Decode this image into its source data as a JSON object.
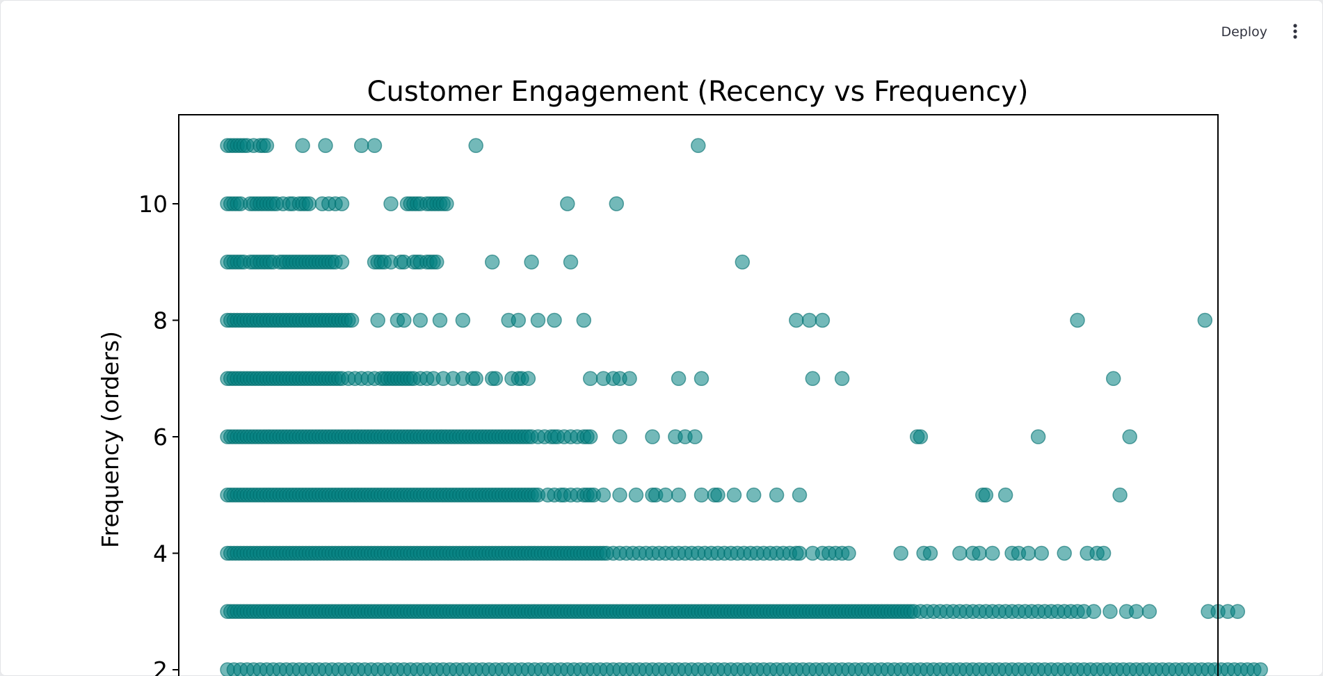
{
  "toolbar": {
    "deploy_label": "Deploy",
    "menu_icon": "kebab-vertical-icon"
  },
  "colors": {
    "point": "#008080",
    "point_edge": "#006d6d",
    "axis": "#000000"
  },
  "chart_data": {
    "type": "scatter",
    "title": "Customer Engagement (Recency vs Frequency)",
    "xlabel": "",
    "ylabel": "Frequency (orders)",
    "ylim": [
      1.9,
      11.5
    ],
    "yticks": [
      2,
      4,
      6,
      8,
      10
    ],
    "grid": false,
    "point_alpha": 0.55,
    "x_note_units": "relative",
    "series": [
      {
        "y": 11,
        "x": [
          0,
          2,
          4,
          6,
          8,
          10,
          12,
          16,
          20,
          22,
          24,
          46,
          60,
          82,
          90,
          152,
          288
        ]
      },
      {
        "y": 10,
        "x": [
          0,
          2,
          4,
          6,
          8,
          14,
          16,
          18,
          20,
          22,
          24,
          26,
          28,
          30,
          34,
          38,
          40,
          44,
          46,
          48,
          50,
          58,
          62,
          66,
          70,
          100,
          110,
          112,
          114,
          116,
          118,
          122,
          124,
          126,
          128,
          130,
          132,
          134,
          208,
          238
        ]
      },
      {
        "y": 9,
        "x": [
          0,
          2,
          4,
          6,
          8,
          10,
          14,
          16,
          18,
          20,
          22,
          24,
          26,
          28,
          32,
          34,
          36,
          38,
          40,
          42,
          44,
          46,
          48,
          50,
          52,
          54,
          56,
          58,
          60,
          62,
          64,
          66,
          70,
          90,
          92,
          94,
          96,
          100,
          106,
          108,
          114,
          116,
          118,
          122,
          124,
          126,
          128,
          162,
          186,
          210,
          315
        ]
      },
      {
        "y": 8,
        "x": [
          0,
          2,
          4,
          6,
          8,
          10,
          12,
          14,
          16,
          18,
          20,
          22,
          24,
          26,
          28,
          30,
          32,
          34,
          36,
          38,
          40,
          42,
          44,
          46,
          48,
          50,
          52,
          54,
          56,
          58,
          60,
          62,
          64,
          66,
          68,
          70,
          72,
          74,
          76,
          92,
          104,
          108,
          118,
          130,
          144,
          172,
          178,
          190,
          200,
          218,
          348,
          356,
          364,
          520,
          598
        ]
      },
      {
        "y": 7,
        "x": [
          0,
          2,
          4,
          6,
          8,
          10,
          12,
          14,
          16,
          18,
          20,
          22,
          24,
          26,
          28,
          30,
          32,
          34,
          36,
          38,
          40,
          42,
          44,
          46,
          48,
          50,
          52,
          54,
          56,
          58,
          60,
          62,
          64,
          66,
          68,
          70,
          74,
          78,
          82,
          86,
          90,
          94,
          96,
          98,
          100,
          102,
          104,
          106,
          108,
          110,
          112,
          114,
          118,
          122,
          126,
          132,
          138,
          144,
          150,
          152,
          162,
          164,
          174,
          178,
          180,
          184,
          222,
          230,
          236,
          240,
          246,
          276,
          290,
          358,
          376,
          542
        ]
      },
      {
        "y": 6,
        "x": [
          0,
          2,
          4,
          6,
          8,
          10,
          12,
          14,
          16,
          18,
          20,
          22,
          24,
          26,
          28,
          30,
          32,
          34,
          36,
          38,
          40,
          42,
          44,
          46,
          48,
          50,
          52,
          54,
          56,
          58,
          60,
          62,
          64,
          66,
          68,
          70,
          72,
          74,
          76,
          78,
          80,
          82,
          84,
          86,
          88,
          90,
          92,
          94,
          96,
          98,
          100,
          102,
          104,
          106,
          108,
          110,
          112,
          114,
          116,
          118,
          120,
          122,
          124,
          126,
          128,
          130,
          132,
          134,
          136,
          138,
          140,
          142,
          144,
          146,
          148,
          150,
          152,
          154,
          156,
          158,
          160,
          162,
          164,
          166,
          168,
          170,
          172,
          174,
          176,
          178,
          180,
          182,
          184,
          186,
          190,
          194,
          198,
          200,
          202,
          206,
          210,
          214,
          218,
          220,
          222,
          240,
          260,
          274,
          280,
          286,
          422,
          424,
          496,
          552
        ]
      },
      {
        "y": 5,
        "x": [
          0,
          2,
          4,
          6,
          8,
          10,
          12,
          14,
          16,
          18,
          20,
          22,
          24,
          26,
          28,
          30,
          32,
          34,
          36,
          38,
          40,
          42,
          44,
          46,
          48,
          50,
          52,
          54,
          56,
          58,
          60,
          62,
          64,
          66,
          68,
          70,
          72,
          74,
          76,
          78,
          80,
          82,
          84,
          86,
          88,
          90,
          92,
          94,
          96,
          98,
          100,
          102,
          104,
          106,
          108,
          110,
          112,
          114,
          116,
          118,
          120,
          122,
          124,
          126,
          128,
          130,
          132,
          134,
          136,
          138,
          140,
          142,
          144,
          146,
          148,
          150,
          152,
          154,
          156,
          158,
          160,
          162,
          164,
          166,
          168,
          170,
          172,
          174,
          176,
          178,
          180,
          182,
          184,
          186,
          188,
          190,
          196,
          200,
          204,
          206,
          210,
          214,
          218,
          220,
          222,
          224,
          230,
          240,
          250,
          260,
          262,
          268,
          276,
          290,
          298,
          300,
          310,
          322,
          336,
          350,
          462,
          464,
          476,
          546
        ]
      },
      {
        "y": 4,
        "x": [
          0,
          2,
          4,
          6,
          8,
          10,
          12,
          14,
          16,
          18,
          20,
          22,
          24,
          26,
          28,
          30,
          32,
          34,
          36,
          38,
          40,
          42,
          44,
          46,
          48,
          50,
          52,
          54,
          56,
          58,
          60,
          62,
          64,
          66,
          68,
          70,
          72,
          74,
          76,
          78,
          80,
          82,
          84,
          86,
          88,
          90,
          92,
          94,
          96,
          98,
          100,
          102,
          104,
          106,
          108,
          110,
          112,
          114,
          116,
          118,
          120,
          122,
          124,
          126,
          128,
          130,
          132,
          134,
          136,
          138,
          140,
          142,
          144,
          146,
          148,
          150,
          152,
          154,
          156,
          158,
          160,
          162,
          164,
          166,
          168,
          170,
          172,
          174,
          176,
          178,
          180,
          182,
          184,
          186,
          188,
          190,
          192,
          194,
          196,
          198,
          200,
          202,
          204,
          206,
          208,
          210,
          212,
          214,
          216,
          218,
          220,
          222,
          224,
          226,
          228,
          230,
          232,
          236,
          240,
          244,
          248,
          252,
          256,
          260,
          264,
          268,
          272,
          276,
          280,
          284,
          288,
          292,
          296,
          300,
          304,
          308,
          312,
          316,
          320,
          324,
          328,
          332,
          336,
          340,
          344,
          348,
          350,
          358,
          364,
          368,
          372,
          376,
          380,
          412,
          426,
          430,
          448,
          456,
          460,
          468,
          480,
          484,
          490,
          498,
          512,
          526,
          532,
          536
        ]
      },
      {
        "y": 3,
        "x": [
          0,
          2,
          4,
          6,
          8,
          10,
          12,
          14,
          16,
          18,
          20,
          22,
          24,
          26,
          28,
          30,
          32,
          34,
          36,
          38,
          40,
          42,
          44,
          46,
          48,
          50,
          52,
          54,
          56,
          58,
          60,
          62,
          64,
          66,
          68,
          70,
          72,
          74,
          76,
          78,
          80,
          82,
          84,
          86,
          88,
          90,
          92,
          94,
          96,
          98,
          100,
          102,
          104,
          106,
          108,
          110,
          112,
          114,
          116,
          118,
          120,
          122,
          124,
          126,
          128,
          130,
          132,
          134,
          136,
          138,
          140,
          142,
          144,
          146,
          148,
          150,
          152,
          154,
          156,
          158,
          160,
          162,
          164,
          166,
          168,
          170,
          172,
          174,
          176,
          178,
          180,
          182,
          184,
          186,
          188,
          190,
          192,
          194,
          196,
          198,
          200,
          202,
          204,
          206,
          208,
          210,
          212,
          214,
          216,
          218,
          220,
          222,
          224,
          226,
          228,
          230,
          232,
          234,
          236,
          238,
          240,
          242,
          244,
          246,
          248,
          250,
          252,
          254,
          256,
          258,
          260,
          262,
          264,
          266,
          268,
          270,
          272,
          274,
          276,
          278,
          280,
          282,
          284,
          286,
          288,
          290,
          292,
          294,
          296,
          298,
          300,
          302,
          304,
          306,
          308,
          310,
          312,
          314,
          316,
          318,
          320,
          322,
          324,
          326,
          328,
          330,
          332,
          334,
          336,
          338,
          340,
          342,
          344,
          346,
          348,
          350,
          352,
          354,
          356,
          358,
          360,
          362,
          364,
          366,
          368,
          370,
          372,
          374,
          376,
          378,
          380,
          382,
          384,
          386,
          388,
          390,
          392,
          394,
          396,
          398,
          400,
          402,
          404,
          406,
          408,
          410,
          412,
          414,
          416,
          418,
          420,
          424,
          428,
          432,
          436,
          440,
          444,
          448,
          452,
          456,
          460,
          464,
          468,
          472,
          476,
          480,
          484,
          488,
          492,
          496,
          500,
          504,
          508,
          512,
          516,
          520,
          524,
          530,
          540,
          550,
          556,
          564,
          600,
          606,
          612,
          618
        ]
      },
      {
        "y": 2,
        "x": [
          0,
          4,
          8,
          12,
          16,
          20,
          24,
          28,
          32,
          36,
          40,
          44,
          48,
          52,
          56,
          60,
          64,
          68,
          72,
          76,
          80,
          84,
          88,
          92,
          96,
          100,
          104,
          108,
          112,
          116,
          120,
          124,
          128,
          132,
          136,
          140,
          144,
          148,
          152,
          156,
          160,
          164,
          168,
          172,
          176,
          180,
          184,
          188,
          192,
          196,
          200,
          204,
          208,
          212,
          216,
          220,
          224,
          228,
          232,
          236,
          240,
          244,
          248,
          252,
          256,
          260,
          264,
          268,
          272,
          276,
          280,
          284,
          288,
          292,
          296,
          300,
          304,
          308,
          312,
          316,
          320,
          324,
          328,
          332,
          336,
          340,
          344,
          348,
          352,
          356,
          360,
          364,
          368,
          372,
          376,
          380,
          384,
          388,
          392,
          396,
          400,
          404,
          408,
          412,
          416,
          420,
          424,
          428,
          432,
          436,
          440,
          444,
          448,
          452,
          456,
          460,
          464,
          468,
          472,
          476,
          480,
          484,
          488,
          492,
          496,
          500,
          504,
          508,
          512,
          516,
          520,
          524,
          528,
          532,
          536,
          540,
          544,
          548,
          552,
          556,
          560,
          564,
          568,
          572,
          576,
          580,
          584,
          588,
          592,
          596,
          600,
          604,
          608,
          612,
          616,
          620,
          624,
          628,
          632
        ]
      }
    ]
  }
}
